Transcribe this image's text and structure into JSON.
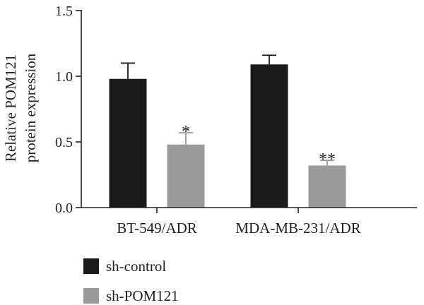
{
  "chart_data": {
    "type": "bar",
    "title": "",
    "xlabel": "",
    "ylabel_lines": [
      "Relative POM121",
      "protein expression"
    ],
    "categories": [
      "BT-549/ADR",
      "MDA-MB-231/ADR"
    ],
    "ylim": [
      0,
      1.5
    ],
    "yticks": [
      "0.0",
      "0.5",
      "1.0",
      "1.5"
    ],
    "grid": false,
    "legend_position": "bottom-left",
    "series": [
      {
        "name": "sh-control",
        "color": "#1a1a1a",
        "values": [
          0.98,
          1.09
        ],
        "errors": [
          0.12,
          0.07
        ],
        "annotations": [
          "",
          ""
        ]
      },
      {
        "name": "sh-POM121",
        "color": "#9a9a9a",
        "values": [
          0.48,
          0.32
        ],
        "errors": [
          0.09,
          0.04
        ],
        "annotations": [
          "*",
          "**"
        ]
      }
    ]
  }
}
